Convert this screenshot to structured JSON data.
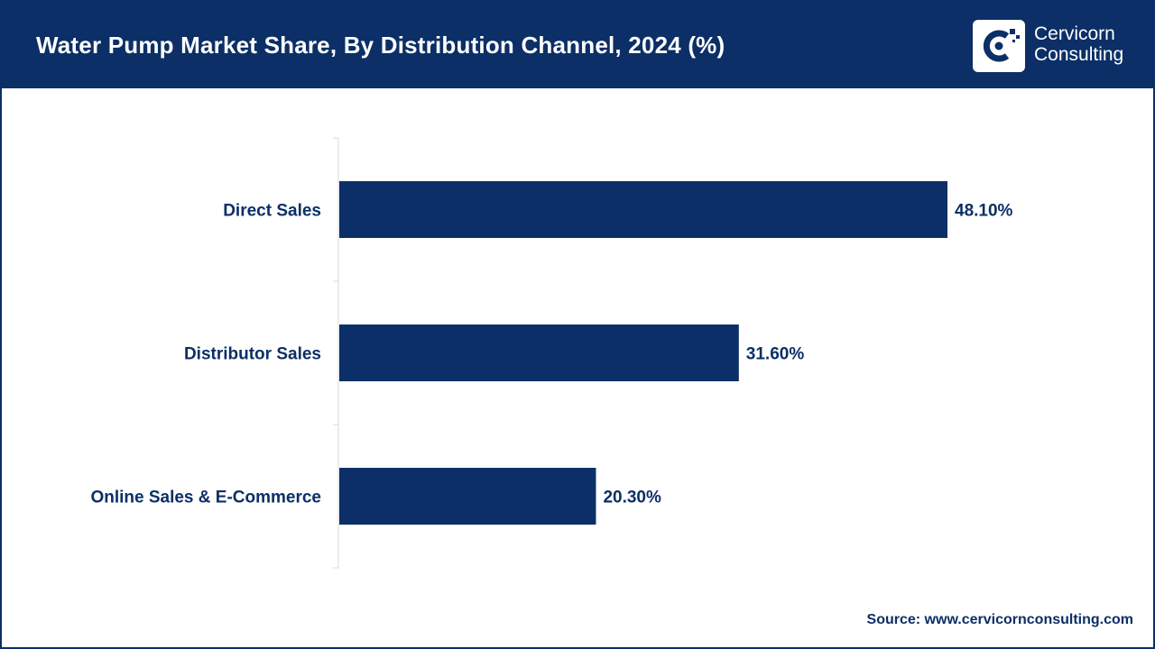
{
  "header": {
    "title": "Water Pump Market Share, By Distribution Channel, 2024 (%)"
  },
  "logo": {
    "icon": "cervicorn-c-icon",
    "line1": "Cervicorn",
    "line2": "Consulting"
  },
  "colors": {
    "brand": "#0b2f66",
    "bar": "#0b2f66",
    "axis": "#d9d9d9"
  },
  "chart_data": {
    "type": "bar",
    "orientation": "horizontal",
    "title": "Water Pump Market Share, By Distribution Channel, 2024 (%)",
    "xlabel": "",
    "ylabel": "",
    "categories": [
      "Direct Sales",
      "Distributor Sales",
      "Online Sales & E-Commerce"
    ],
    "values": [
      48.1,
      31.6,
      20.3
    ],
    "value_labels": [
      "48.10%",
      "31.60%",
      "20.30%"
    ],
    "xlim": [
      0,
      48.1
    ],
    "grid": false,
    "legend": "none"
  },
  "footer": {
    "source": "Source: www.cervicornconsulting.com"
  }
}
